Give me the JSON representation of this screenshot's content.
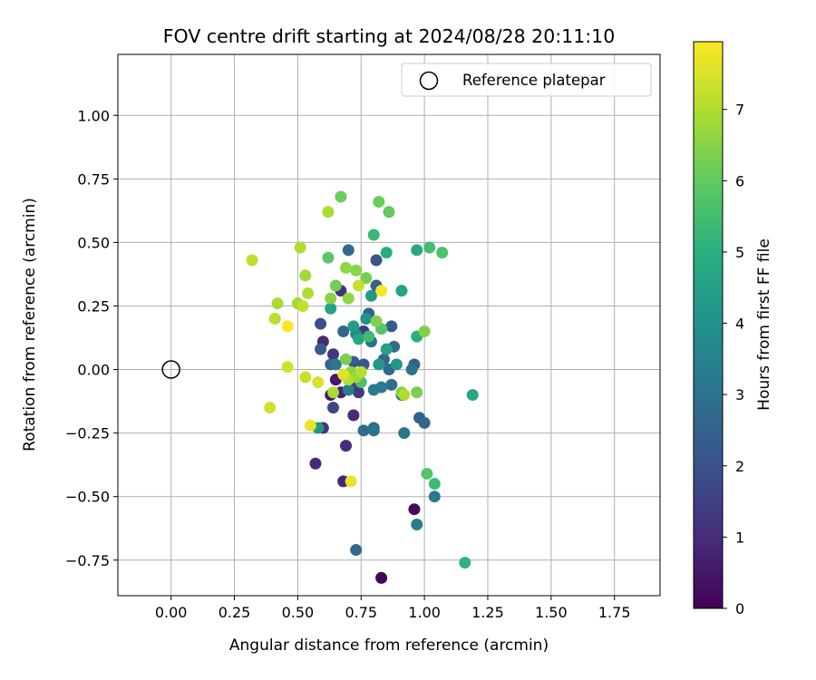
{
  "chart_data": {
    "type": "scatter",
    "title": "FOV centre drift starting at 2024/08/28 20:11:10",
    "xlabel": "Angular distance from reference (arcmin)",
    "ylabel": "Rotation from reference (arcmin)",
    "xlim": [
      -0.21,
      1.93
    ],
    "ylim": [
      -0.89,
      1.24
    ],
    "xticks": [
      0.0,
      0.25,
      0.5,
      0.75,
      1.0,
      1.25,
      1.5,
      1.75
    ],
    "xtick_labels": [
      "0.00",
      "0.25",
      "0.50",
      "0.75",
      "1.00",
      "1.25",
      "1.50",
      "1.75"
    ],
    "yticks": [
      -0.75,
      -0.5,
      -0.25,
      0.0,
      0.25,
      0.5,
      0.75,
      1.0
    ],
    "ytick_labels": [
      "−0.75",
      "−0.50",
      "−0.25",
      "0.00",
      "0.25",
      "0.50",
      "0.75",
      "1.00"
    ],
    "grid": true,
    "legend": {
      "position": "top-right",
      "entries": [
        "Reference platepar"
      ]
    },
    "reference_point": {
      "label": "Reference platepar",
      "x": 0.0,
      "y": 0.0
    },
    "colorbar": {
      "label": "Hours from first FF file",
      "colormap": "viridis",
      "range": [
        0,
        7.95
      ],
      "ticks": [
        0,
        1,
        2,
        3,
        4,
        5,
        6,
        7
      ],
      "tick_labels": [
        "0",
        "1",
        "2",
        "3",
        "4",
        "5",
        "6",
        "7"
      ]
    },
    "points": [
      {
        "x": 0.83,
        "y": -0.82,
        "c": 0.1
      },
      {
        "x": 0.96,
        "y": -0.55,
        "c": 0.2
      },
      {
        "x": 0.68,
        "y": -0.44,
        "c": 0.8
      },
      {
        "x": 0.57,
        "y": -0.37,
        "c": 0.9
      },
      {
        "x": 0.69,
        "y": -0.3,
        "c": 1.0
      },
      {
        "x": 0.72,
        "y": -0.18,
        "c": 0.9
      },
      {
        "x": 0.6,
        "y": -0.23,
        "c": 1.2
      },
      {
        "x": 0.64,
        "y": -0.15,
        "c": 1.7
      },
      {
        "x": 0.67,
        "y": -0.09,
        "c": 0.7
      },
      {
        "x": 0.63,
        "y": -0.1,
        "c": 0.5
      },
      {
        "x": 0.72,
        "y": -0.07,
        "c": 1.5
      },
      {
        "x": 0.74,
        "y": -0.09,
        "c": 1.3
      },
      {
        "x": 0.65,
        "y": -0.04,
        "c": 0.5
      },
      {
        "x": 0.64,
        "y": 0.06,
        "c": 1.2
      },
      {
        "x": 0.6,
        "y": 0.11,
        "c": 0.9
      },
      {
        "x": 0.59,
        "y": 0.08,
        "c": 2.2
      },
      {
        "x": 0.59,
        "y": 0.18,
        "c": 1.9
      },
      {
        "x": 0.63,
        "y": 0.02,
        "c": 2.6
      },
      {
        "x": 0.67,
        "y": 0.31,
        "c": 1.1
      },
      {
        "x": 0.7,
        "y": 0.47,
        "c": 2.7
      },
      {
        "x": 0.81,
        "y": 0.43,
        "c": 2.0
      },
      {
        "x": 0.81,
        "y": 0.33,
        "c": 2.4
      },
      {
        "x": 0.76,
        "y": 0.15,
        "c": 1.3
      },
      {
        "x": 0.68,
        "y": 0.15,
        "c": 2.6
      },
      {
        "x": 0.79,
        "y": 0.11,
        "c": 2.9
      },
      {
        "x": 0.72,
        "y": 0.03,
        "c": 2.3
      },
      {
        "x": 0.76,
        "y": 0.02,
        "c": 2.1
      },
      {
        "x": 0.78,
        "y": 0.22,
        "c": 2.5
      },
      {
        "x": 0.87,
        "y": 0.17,
        "c": 2.3
      },
      {
        "x": 0.84,
        "y": 0.04,
        "c": 2.6
      },
      {
        "x": 0.88,
        "y": 0.09,
        "c": 2.8
      },
      {
        "x": 0.86,
        "y": 0.0,
        "c": 2.7
      },
      {
        "x": 0.96,
        "y": 0.02,
        "c": 2.4
      },
      {
        "x": 0.95,
        "y": 0.0,
        "c": 3.0
      },
      {
        "x": 0.87,
        "y": -0.06,
        "c": 2.8
      },
      {
        "x": 0.83,
        "y": -0.07,
        "c": 3.2
      },
      {
        "x": 0.91,
        "y": -0.1,
        "c": 2.6
      },
      {
        "x": 0.98,
        "y": -0.19,
        "c": 2.5
      },
      {
        "x": 1.0,
        "y": -0.21,
        "c": 2.6
      },
      {
        "x": 0.76,
        "y": -0.24,
        "c": 2.8
      },
      {
        "x": 0.8,
        "y": -0.23,
        "c": 2.5
      },
      {
        "x": 0.8,
        "y": -0.24,
        "c": 3.0
      },
      {
        "x": 0.92,
        "y": -0.25,
        "c": 3.1
      },
      {
        "x": 1.04,
        "y": -0.5,
        "c": 3.2
      },
      {
        "x": 0.97,
        "y": -0.61,
        "c": 3.3
      },
      {
        "x": 0.73,
        "y": -0.71,
        "c": 2.7
      },
      {
        "x": 0.8,
        "y": -0.08,
        "c": 3.2
      },
      {
        "x": 0.7,
        "y": -0.08,
        "c": 3.4
      },
      {
        "x": 0.65,
        "y": 0.02,
        "c": 3.1
      },
      {
        "x": 0.73,
        "y": 0.14,
        "c": 3.6
      },
      {
        "x": 0.77,
        "y": 0.2,
        "c": 4.0
      },
      {
        "x": 0.79,
        "y": 0.29,
        "c": 4.3
      },
      {
        "x": 0.82,
        "y": 0.02,
        "c": 4.2
      },
      {
        "x": 0.85,
        "y": 0.08,
        "c": 4.5
      },
      {
        "x": 0.89,
        "y": 0.02,
        "c": 4.1
      },
      {
        "x": 0.91,
        "y": 0.31,
        "c": 4.6
      },
      {
        "x": 0.97,
        "y": 0.47,
        "c": 4.8
      },
      {
        "x": 0.85,
        "y": 0.46,
        "c": 4.9
      },
      {
        "x": 0.72,
        "y": 0.17,
        "c": 4.4
      },
      {
        "x": 0.74,
        "y": 0.12,
        "c": 4.7
      },
      {
        "x": 0.63,
        "y": 0.24,
        "c": 4.6
      },
      {
        "x": 0.58,
        "y": -0.23,
        "c": 4.2
      },
      {
        "x": 1.19,
        "y": -0.1,
        "c": 4.7
      },
      {
        "x": 1.16,
        "y": -0.76,
        "c": 5.1
      },
      {
        "x": 0.97,
        "y": 0.13,
        "c": 5.0
      },
      {
        "x": 0.8,
        "y": 0.53,
        "c": 5.3
      },
      {
        "x": 1.02,
        "y": 0.48,
        "c": 5.5
      },
      {
        "x": 1.07,
        "y": 0.46,
        "c": 5.7
      },
      {
        "x": 1.04,
        "y": -0.45,
        "c": 5.4
      },
      {
        "x": 1.01,
        "y": -0.41,
        "c": 5.8
      },
      {
        "x": 0.78,
        "y": 0.13,
        "c": 5.4
      },
      {
        "x": 0.83,
        "y": 0.16,
        "c": 5.8
      },
      {
        "x": 0.75,
        "y": -0.05,
        "c": 5.6
      },
      {
        "x": 0.62,
        "y": 0.44,
        "c": 5.9
      },
      {
        "x": 0.67,
        "y": 0.68,
        "c": 6.1
      },
      {
        "x": 0.82,
        "y": 0.66,
        "c": 6.1
      },
      {
        "x": 0.86,
        "y": 0.62,
        "c": 6.0
      },
      {
        "x": 0.77,
        "y": 0.36,
        "c": 6.3
      },
      {
        "x": 0.73,
        "y": 0.39,
        "c": 6.5
      },
      {
        "x": 0.69,
        "y": 0.4,
        "c": 6.6
      },
      {
        "x": 0.65,
        "y": 0.33,
        "c": 6.2
      },
      {
        "x": 0.7,
        "y": 0.28,
        "c": 6.6
      },
      {
        "x": 0.63,
        "y": 0.28,
        "c": 6.5
      },
      {
        "x": 0.81,
        "y": 0.19,
        "c": 6.4
      },
      {
        "x": 0.69,
        "y": 0.04,
        "c": 6.3
      },
      {
        "x": 0.71,
        "y": -0.01,
        "c": 6.5
      },
      {
        "x": 0.73,
        "y": -0.03,
        "c": 6.7
      },
      {
        "x": 0.91,
        "y": -0.09,
        "c": 6.4
      },
      {
        "x": 0.97,
        "y": -0.09,
        "c": 6.3
      },
      {
        "x": 1.0,
        "y": 0.15,
        "c": 6.4
      },
      {
        "x": 0.62,
        "y": 0.62,
        "c": 6.9
      },
      {
        "x": 0.53,
        "y": 0.37,
        "c": 6.8
      },
      {
        "x": 0.51,
        "y": 0.48,
        "c": 7.0
      },
      {
        "x": 0.42,
        "y": 0.26,
        "c": 6.9
      },
      {
        "x": 0.5,
        "y": 0.26,
        "c": 6.8
      },
      {
        "x": 0.54,
        "y": 0.3,
        "c": 7.0
      },
      {
        "x": 0.52,
        "y": 0.25,
        "c": 7.2
      },
      {
        "x": 0.41,
        "y": 0.2,
        "c": 7.1
      },
      {
        "x": 0.32,
        "y": 0.43,
        "c": 7.2
      },
      {
        "x": 0.74,
        "y": 0.33,
        "c": 7.3
      },
      {
        "x": 0.75,
        "y": -0.01,
        "c": 7.1
      },
      {
        "x": 0.7,
        "y": -0.04,
        "c": 7.0
      },
      {
        "x": 0.64,
        "y": -0.09,
        "c": 6.9
      },
      {
        "x": 0.92,
        "y": -0.1,
        "c": 7.0
      },
      {
        "x": 0.46,
        "y": 0.01,
        "c": 7.4
      },
      {
        "x": 0.53,
        "y": -0.03,
        "c": 7.3
      },
      {
        "x": 0.58,
        "y": -0.05,
        "c": 7.5
      },
      {
        "x": 0.68,
        "y": -0.02,
        "c": 7.6
      },
      {
        "x": 0.39,
        "y": -0.15,
        "c": 7.4
      },
      {
        "x": 0.55,
        "y": -0.22,
        "c": 7.7
      },
      {
        "x": 0.71,
        "y": -0.44,
        "c": 7.7
      },
      {
        "x": 0.46,
        "y": 0.17,
        "c": 7.9
      },
      {
        "x": 0.83,
        "y": 0.31,
        "c": 7.9
      }
    ]
  }
}
